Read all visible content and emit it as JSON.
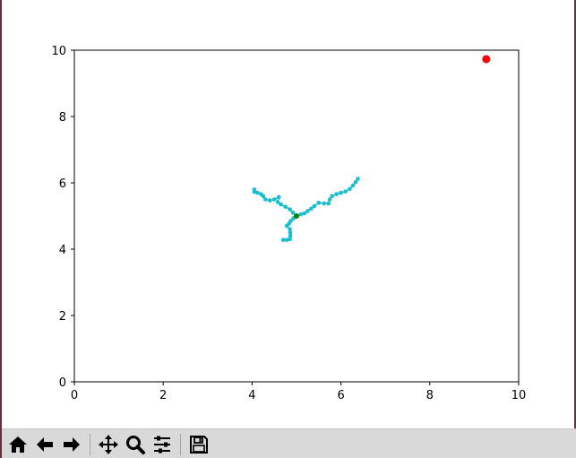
{
  "chart_data": {
    "type": "scatter",
    "xlim": [
      0,
      10
    ],
    "ylim": [
      0,
      10
    ],
    "x_ticks": [
      "0",
      "2",
      "4",
      "6",
      "8",
      "10"
    ],
    "y_ticks": [
      "0",
      "2",
      "4",
      "6",
      "8",
      "10"
    ],
    "grid": false,
    "colors": {
      "path": "#17becf",
      "target": "#ff0000",
      "start": "#008000"
    },
    "target_point": {
      "x": 9.27,
      "y": 9.73
    },
    "start_point": {
      "x": 5.0,
      "y": 5.0
    },
    "branches": [
      {
        "points": [
          [
            5.0,
            5.0
          ],
          [
            4.92,
            5.1
          ],
          [
            4.85,
            5.2
          ],
          [
            4.75,
            5.28
          ],
          [
            4.65,
            5.35
          ],
          [
            4.58,
            5.42
          ],
          [
            4.6,
            5.57
          ],
          [
            4.5,
            5.5
          ],
          [
            4.4,
            5.47
          ],
          [
            4.3,
            5.5
          ],
          [
            4.25,
            5.6
          ],
          [
            4.2,
            5.66
          ],
          [
            4.12,
            5.7
          ],
          [
            4.05,
            5.73
          ],
          [
            4.05,
            5.8
          ]
        ]
      },
      {
        "points": [
          [
            5.0,
            5.0
          ],
          [
            5.1,
            5.05
          ],
          [
            5.18,
            5.08
          ],
          [
            5.25,
            5.15
          ],
          [
            5.33,
            5.22
          ],
          [
            5.4,
            5.3
          ],
          [
            5.5,
            5.4
          ],
          [
            5.62,
            5.38
          ],
          [
            5.72,
            5.38
          ],
          [
            5.75,
            5.5
          ],
          [
            5.8,
            5.6
          ],
          [
            5.9,
            5.66
          ],
          [
            6.0,
            5.7
          ],
          [
            6.1,
            5.74
          ],
          [
            6.2,
            5.82
          ],
          [
            6.27,
            5.92
          ],
          [
            6.33,
            6.02
          ],
          [
            6.38,
            6.12
          ]
        ]
      },
      {
        "points": [
          [
            5.0,
            5.0
          ],
          [
            4.93,
            4.93
          ],
          [
            4.87,
            4.85
          ],
          [
            4.83,
            4.77
          ],
          [
            4.78,
            4.7
          ],
          [
            4.85,
            4.6
          ],
          [
            4.86,
            4.5
          ],
          [
            4.86,
            4.4
          ],
          [
            4.85,
            4.3
          ],
          [
            4.78,
            4.28
          ],
          [
            4.7,
            4.28
          ]
        ]
      }
    ]
  },
  "toolbar": {
    "buttons": [
      {
        "name": "home-button",
        "icon": "home-icon"
      },
      {
        "name": "back-button",
        "icon": "arrow-left-icon"
      },
      {
        "name": "forward-button",
        "icon": "arrow-right-icon"
      },
      {
        "name": "pan-button",
        "icon": "move-icon"
      },
      {
        "name": "zoom-button",
        "icon": "magnifier-icon"
      },
      {
        "name": "configure-subplots-button",
        "icon": "sliders-icon"
      },
      {
        "name": "save-button",
        "icon": "floppy-disk-icon"
      }
    ]
  }
}
